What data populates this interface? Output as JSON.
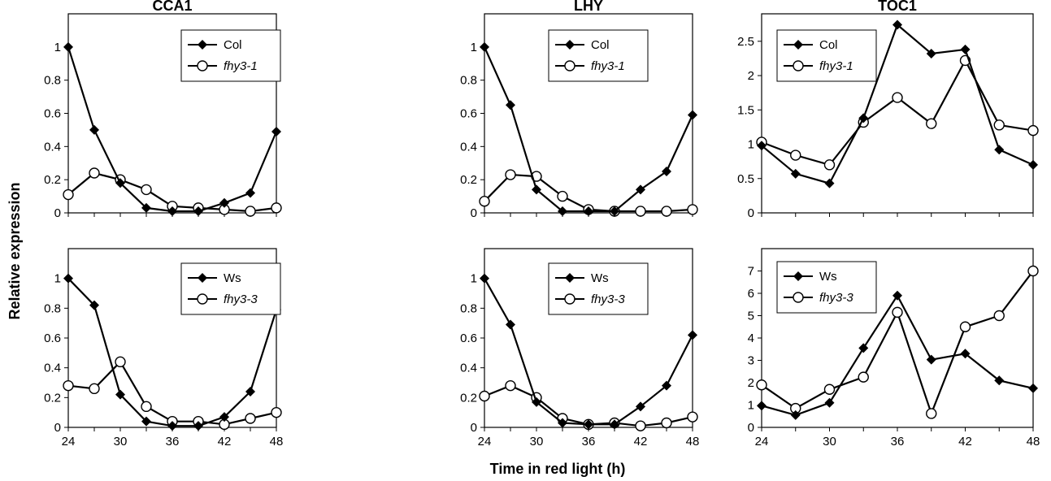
{
  "figure": {
    "ylabel": "Relative expression",
    "xlabel": "Time in red light (h)"
  },
  "chart_data": [
    {
      "type": "line",
      "title": "CCA1",
      "xticks": [
        "",
        "",
        "",
        "",
        "",
        "",
        "",
        "",
        ""
      ],
      "ylim": [
        0,
        1.2
      ],
      "yticks": [
        "0",
        "0.2",
        "0.4",
        "0.6",
        "0.8",
        "1"
      ],
      "x": [
        24,
        27,
        30,
        33,
        36,
        39,
        42,
        45,
        48
      ],
      "series": [
        {
          "name": "Col",
          "marker": "diamond",
          "values": [
            1.0,
            0.5,
            0.18,
            0.03,
            0.01,
            0.01,
            0.06,
            0.12,
            0.49
          ]
        },
        {
          "name": "fhy3-1",
          "marker": "circle",
          "values": [
            0.11,
            0.24,
            0.2,
            0.14,
            0.04,
            0.03,
            0.02,
            0.01,
            0.03
          ]
        }
      ],
      "legend": "top-center"
    },
    {
      "type": "line",
      "title": "LHY",
      "xticks": [
        "",
        "",
        "",
        "",
        "",
        "",
        "",
        "",
        ""
      ],
      "ylim": [
        0,
        1.2
      ],
      "yticks": [
        "0",
        "0.2",
        "0.4",
        "0.6",
        "0.8",
        "1"
      ],
      "x": [
        24,
        27,
        30,
        33,
        36,
        39,
        42,
        45,
        48
      ],
      "series": [
        {
          "name": "Col",
          "marker": "diamond",
          "values": [
            1.0,
            0.65,
            0.14,
            0.01,
            0.01,
            0.01,
            0.14,
            0.25,
            0.59
          ]
        },
        {
          "name": "fhy3-1",
          "marker": "circle",
          "values": [
            0.07,
            0.23,
            0.22,
            0.1,
            0.02,
            0.01,
            0.01,
            0.01,
            0.02
          ]
        }
      ],
      "legend": "top-center"
    },
    {
      "type": "line",
      "title": "TOC1",
      "xticks": [
        "",
        "",
        "",
        "",
        "",
        "",
        "",
        "",
        ""
      ],
      "ylim": [
        0,
        2.9
      ],
      "yticks": [
        "0",
        "0.5",
        "1",
        "1.5",
        "2",
        "2.5"
      ],
      "x": [
        24,
        27,
        30,
        33,
        36,
        39,
        42,
        45,
        48
      ],
      "series": [
        {
          "name": "Col",
          "marker": "diamond",
          "values": [
            0.98,
            0.57,
            0.43,
            1.38,
            2.74,
            2.32,
            2.38,
            0.92,
            0.7
          ]
        },
        {
          "name": "fhy3-1",
          "marker": "circle",
          "values": [
            1.03,
            0.84,
            0.7,
            1.32,
            1.68,
            1.3,
            2.22,
            1.28,
            1.2
          ]
        }
      ],
      "legend": "top-left"
    },
    {
      "type": "line",
      "title": "",
      "xticks": [
        "24",
        "",
        "30",
        "",
        "36",
        "",
        "42",
        "",
        "48"
      ],
      "ylim": [
        0,
        1.2
      ],
      "yticks": [
        "0",
        "0.2",
        "0.4",
        "0.6",
        "0.8",
        "1"
      ],
      "x": [
        24,
        27,
        30,
        33,
        36,
        39,
        42,
        45,
        48
      ],
      "series": [
        {
          "name": "Ws",
          "marker": "diamond",
          "values": [
            1.0,
            0.82,
            0.22,
            0.04,
            0.01,
            0.01,
            0.07,
            0.24,
            0.79
          ]
        },
        {
          "name": "fhy3-3",
          "marker": "circle",
          "values": [
            0.28,
            0.26,
            0.44,
            0.14,
            0.04,
            0.04,
            0.02,
            0.06,
            0.1
          ]
        }
      ],
      "legend": "top-center"
    },
    {
      "type": "line",
      "title": "",
      "xticks": [
        "24",
        "",
        "30",
        "",
        "36",
        "",
        "42",
        "",
        "48"
      ],
      "ylim": [
        0,
        1.2
      ],
      "yticks": [
        "0",
        "0.2",
        "0.4",
        "0.6",
        "0.8",
        "1"
      ],
      "x": [
        24,
        27,
        30,
        33,
        36,
        39,
        42,
        45,
        48
      ],
      "series": [
        {
          "name": "Ws",
          "marker": "diamond",
          "values": [
            1.0,
            0.69,
            0.17,
            0.03,
            0.02,
            0.02,
            0.14,
            0.28,
            0.62
          ]
        },
        {
          "name": "fhy3-3",
          "marker": "circle",
          "values": [
            0.21,
            0.28,
            0.2,
            0.06,
            0.02,
            0.03,
            0.01,
            0.03,
            0.07
          ]
        }
      ],
      "legend": "top-center"
    },
    {
      "type": "line",
      "title": "",
      "xticks": [
        "24",
        "",
        "30",
        "",
        "36",
        "",
        "42",
        "",
        "48"
      ],
      "ylim": [
        0,
        8
      ],
      "yticks": [
        "0",
        "1",
        "2",
        "3",
        "4",
        "5",
        "6",
        "7"
      ],
      "x": [
        24,
        27,
        30,
        33,
        36,
        39,
        42,
        45,
        48
      ],
      "series": [
        {
          "name": "Ws",
          "marker": "diamond",
          "values": [
            0.97,
            0.55,
            1.1,
            3.55,
            5.9,
            3.03,
            3.3,
            2.1,
            1.75
          ]
        },
        {
          "name": "fhy3-3",
          "marker": "circle",
          "values": [
            1.9,
            0.85,
            1.7,
            2.25,
            5.15,
            0.62,
            4.5,
            5.0,
            7.0
          ]
        }
      ],
      "legend": "top-left"
    }
  ]
}
